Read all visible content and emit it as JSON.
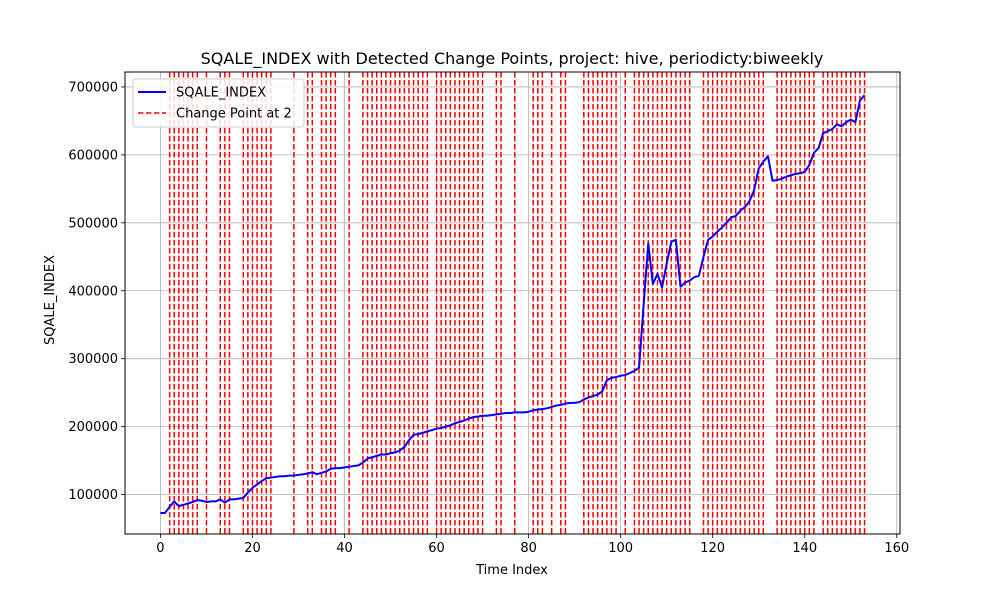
{
  "chart_data": {
    "type": "line",
    "title": "SQALE_INDEX with Detected Change Points, project: hive, periodicty:biweekly",
    "xlabel": "Time Index",
    "ylabel": "SQALE_INDEX",
    "xlim": [
      -7.7,
      160.7
    ],
    "ylim": [
      42000,
      722000
    ],
    "xticks": [
      0,
      20,
      40,
      60,
      80,
      100,
      120,
      140,
      160
    ],
    "yticks": [
      100000,
      200000,
      300000,
      400000,
      500000,
      600000,
      700000
    ],
    "xtick_labels": [
      "0",
      "20",
      "40",
      "60",
      "80",
      "100",
      "120",
      "140",
      "160"
    ],
    "ytick_labels": [
      "100000",
      "200000",
      "300000",
      "400000",
      "500000",
      "600000",
      "700000"
    ],
    "grid": true,
    "legend_position": "top-left",
    "legend": {
      "series_label": "SQALE_INDEX",
      "changepoint_label": "Change Point at 2"
    },
    "series": [
      {
        "name": "SQALE_INDEX",
        "color": "#0000ff",
        "x": [
          0,
          1,
          2,
          3,
          4,
          5,
          6,
          7,
          8,
          9,
          10,
          11,
          12,
          13,
          14,
          15,
          16,
          17,
          18,
          19,
          20,
          21,
          22,
          23,
          24,
          25,
          26,
          27,
          28,
          29,
          30,
          31,
          32,
          33,
          34,
          35,
          36,
          37,
          38,
          39,
          40,
          41,
          42,
          43,
          44,
          45,
          46,
          47,
          48,
          49,
          50,
          51,
          52,
          53,
          54,
          55,
          56,
          57,
          58,
          59,
          60,
          61,
          62,
          63,
          64,
          65,
          66,
          67,
          68,
          69,
          70,
          71,
          72,
          73,
          74,
          75,
          76,
          77,
          78,
          79,
          80,
          81,
          82,
          83,
          84,
          85,
          86,
          87,
          88,
          89,
          90,
          91,
          92,
          93,
          94,
          95,
          96,
          97,
          98,
          99,
          100,
          101,
          102,
          103,
          104,
          105,
          106,
          107,
          108,
          109,
          110,
          111,
          112,
          113,
          114,
          115,
          116,
          117,
          118,
          119,
          120,
          121,
          122,
          123,
          124,
          125,
          126,
          127,
          128,
          129,
          130,
          131,
          132,
          133,
          134,
          135,
          136,
          137,
          138,
          139,
          140,
          141,
          142,
          143,
          144,
          145,
          146,
          147,
          148,
          149,
          150,
          151,
          152,
          153
        ],
        "y": [
          73000,
          73000,
          82000,
          90000,
          83000,
          85000,
          87000,
          89000,
          92000,
          91000,
          89000,
          90000,
          90000,
          93000,
          88000,
          93000,
          93000,
          94000,
          95000,
          103000,
          110000,
          115000,
          120000,
          124000,
          125000,
          126000,
          127000,
          127000,
          128000,
          128000,
          129000,
          130000,
          131000,
          133000,
          130000,
          132000,
          134000,
          138000,
          139000,
          139000,
          140000,
          141000,
          142000,
          143000,
          147000,
          153000,
          155000,
          157000,
          159000,
          159000,
          161000,
          162000,
          165000,
          170000,
          180000,
          188000,
          189000,
          191000,
          193000,
          195000,
          197000,
          198000,
          200000,
          202000,
          205000,
          207000,
          209000,
          212000,
          214000,
          215000,
          216000,
          216000,
          217000,
          218000,
          219000,
          220000,
          220000,
          221000,
          221000,
          221000,
          222000,
          224000,
          225000,
          226000,
          227000,
          229000,
          231000,
          232000,
          234000,
          235000,
          235000,
          236000,
          240000,
          243000,
          245000,
          247000,
          252000,
          268000,
          272000,
          273000,
          275000,
          276000,
          279000,
          282000,
          287000,
          380000,
          470000,
          410000,
          425000,
          405000,
          440000,
          472000,
          475000,
          406000,
          412000,
          415000,
          420000,
          422000,
          450000,
          475000,
          480000,
          487000,
          493000,
          500000,
          508000,
          510000,
          518000,
          523000,
          532000,
          548000,
          580000,
          590000,
          598000,
          562000,
          563000,
          565000,
          568000,
          570000,
          572000,
          573000,
          575000,
          585000,
          603000,
          610000,
          632000,
          635000,
          638000,
          645000,
          642000,
          648000,
          652000,
          648000,
          680000,
          688000
        ]
      }
    ],
    "change_points": {
      "color": "#ff0000",
      "label": "Change Point at 2",
      "x": [
        2,
        3,
        4,
        5,
        6,
        7,
        8,
        10,
        13,
        14,
        15,
        18,
        19,
        20,
        21,
        22,
        23,
        24,
        29,
        32,
        33,
        35,
        36,
        37,
        38,
        41,
        44,
        45,
        46,
        47,
        48,
        49,
        50,
        51,
        52,
        53,
        54,
        55,
        56,
        57,
        58,
        60,
        61,
        62,
        63,
        64,
        65,
        66,
        67,
        68,
        69,
        70,
        73,
        74,
        77,
        81,
        82,
        83,
        85,
        87,
        88,
        92,
        93,
        94,
        95,
        96,
        97,
        98,
        99,
        101,
        103,
        104,
        105,
        106,
        107,
        108,
        109,
        110,
        111,
        112,
        113,
        114,
        115,
        118,
        119,
        120,
        121,
        122,
        123,
        124,
        125,
        126,
        127,
        128,
        129,
        130,
        131,
        134,
        135,
        136,
        137,
        138,
        139,
        140,
        141,
        142,
        144,
        145,
        146,
        147,
        148,
        149,
        150,
        151,
        152,
        153
      ]
    }
  }
}
